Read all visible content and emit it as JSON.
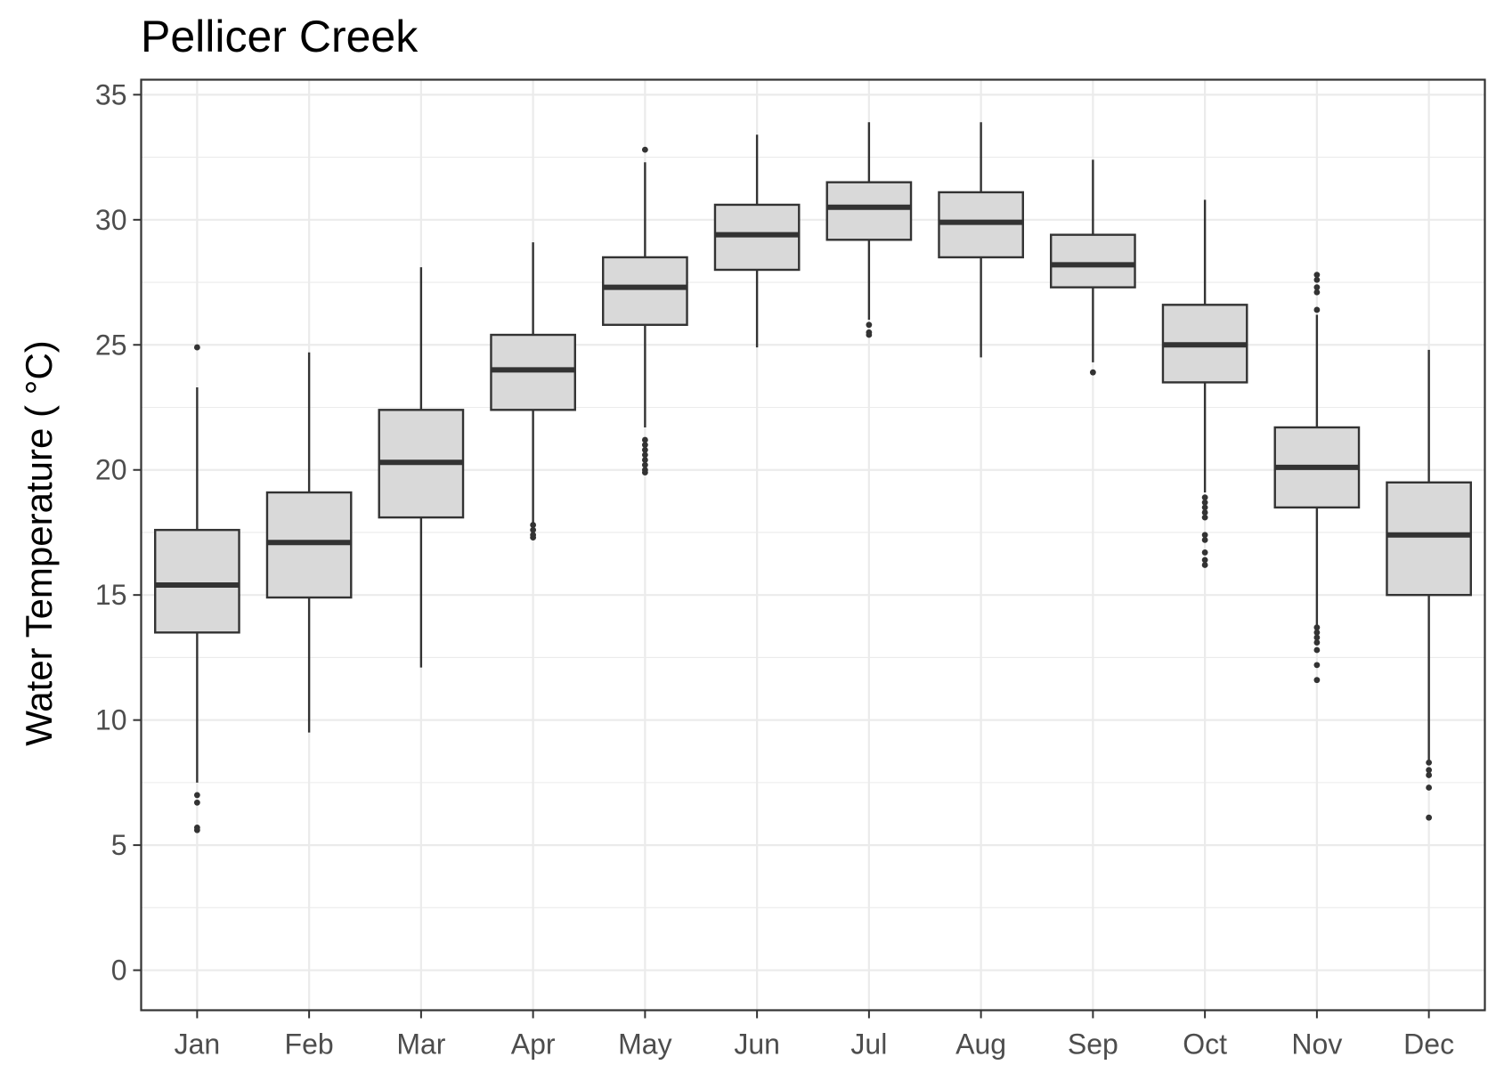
{
  "chart_data": {
    "type": "boxplot",
    "title": "Pellicer Creek",
    "ylabel": "Water Temperature ( °C)",
    "xlabel": "",
    "ylim": [
      -1.6,
      35.6
    ],
    "yticks": [
      0,
      5,
      10,
      15,
      20,
      25,
      30,
      35
    ],
    "grid": true,
    "categories": [
      "Jan",
      "Feb",
      "Mar",
      "Apr",
      "May",
      "Jun",
      "Jul",
      "Aug",
      "Sep",
      "Oct",
      "Nov",
      "Dec"
    ],
    "boxes": [
      {
        "month": "Jan",
        "whisker_low": 7.5,
        "q1": 13.5,
        "median": 15.4,
        "q3": 17.6,
        "whisker_high": 23.3,
        "outliers": [
          5.6,
          5.7,
          6.7,
          7.0,
          24.9
        ]
      },
      {
        "month": "Feb",
        "whisker_low": 9.5,
        "q1": 14.9,
        "median": 17.1,
        "q3": 19.1,
        "whisker_high": 24.7,
        "outliers": []
      },
      {
        "month": "Mar",
        "whisker_low": 12.1,
        "q1": 18.1,
        "median": 20.3,
        "q3": 22.4,
        "whisker_high": 28.1,
        "outliers": []
      },
      {
        "month": "Apr",
        "whisker_low": 17.9,
        "q1": 22.4,
        "median": 24.0,
        "q3": 25.4,
        "whisker_high": 29.1,
        "outliers": [
          17.3,
          17.4,
          17.6,
          17.8
        ]
      },
      {
        "month": "May",
        "whisker_low": 21.7,
        "q1": 25.8,
        "median": 27.3,
        "q3": 28.5,
        "whisker_high": 32.3,
        "outliers": [
          19.9,
          20.0,
          20.2,
          20.4,
          20.6,
          20.8,
          21.0,
          21.2,
          32.8
        ]
      },
      {
        "month": "Jun",
        "whisker_low": 24.9,
        "q1": 28.0,
        "median": 29.4,
        "q3": 30.6,
        "whisker_high": 33.4,
        "outliers": []
      },
      {
        "month": "Jul",
        "whisker_low": 26.0,
        "q1": 29.2,
        "median": 30.5,
        "q3": 31.5,
        "whisker_high": 33.9,
        "outliers": [
          25.4,
          25.5,
          25.8
        ]
      },
      {
        "month": "Aug",
        "whisker_low": 24.5,
        "q1": 28.5,
        "median": 29.9,
        "q3": 31.1,
        "whisker_high": 33.9,
        "outliers": []
      },
      {
        "month": "Sep",
        "whisker_low": 24.3,
        "q1": 27.3,
        "median": 28.2,
        "q3": 29.4,
        "whisker_high": 32.4,
        "outliers": [
          23.9
        ]
      },
      {
        "month": "Oct",
        "whisker_low": 19.1,
        "q1": 23.5,
        "median": 25.0,
        "q3": 26.6,
        "whisker_high": 30.8,
        "outliers": [
          16.2,
          16.4,
          16.7,
          17.2,
          17.4,
          18.1,
          18.3,
          18.5,
          18.7,
          18.9
        ]
      },
      {
        "month": "Nov",
        "whisker_low": 13.8,
        "q1": 18.5,
        "median": 20.1,
        "q3": 21.7,
        "whisker_high": 26.2,
        "outliers": [
          11.6,
          12.2,
          12.8,
          13.1,
          13.3,
          13.5,
          13.7,
          26.4,
          27.1,
          27.3,
          27.6,
          27.8
        ]
      },
      {
        "month": "Dec",
        "whisker_low": 8.4,
        "q1": 15.0,
        "median": 17.4,
        "q3": 19.5,
        "whisker_high": 24.8,
        "outliers": [
          6.1,
          7.3,
          7.8,
          8.0,
          8.3
        ]
      }
    ]
  }
}
